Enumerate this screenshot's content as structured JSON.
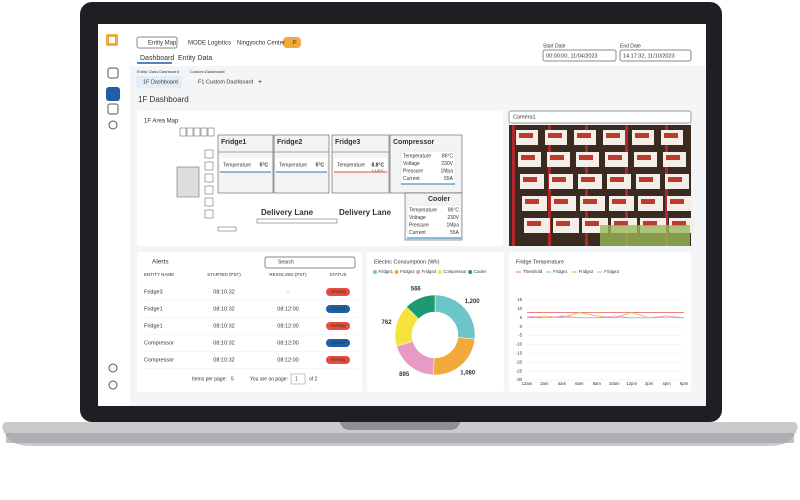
{
  "nav": {
    "entity_map": "Entity Map",
    "breadcrumb": [
      "MODE Logistics",
      "Ningyocho Center"
    ],
    "toggle": "F",
    "tabs": [
      "Dashboard",
      "Entity Data"
    ]
  },
  "dates": {
    "start_label": "Start Date",
    "start": "00:00:00, 11/04/2023",
    "end_label": "End Date",
    "end": "14:17:32, 11/10/2023"
  },
  "dashboards": {
    "class_label": "Entity Class Dashboard",
    "class_item": "1F Dashboard",
    "custom_label": "Custom Dashboard",
    "custom_item": "F1 Custom Dashboard",
    "add": "+"
  },
  "page_title": "1F Dashboard",
  "area_map": {
    "title": "1F Area Map",
    "rooms": [
      {
        "name": "Fridge1",
        "label": "Temperature",
        "value": "5°C"
      },
      {
        "name": "Fridge2",
        "label": "Temperature",
        "value": "5°C"
      },
      {
        "name": "Fridge3",
        "label": "Temperature",
        "value": "8.8°C",
        "delta": "+1.8°C"
      }
    ],
    "equipment": [
      {
        "name": "Compressor",
        "readings": [
          [
            "Temperature",
            "86°C"
          ],
          [
            "Voltage",
            "230V"
          ],
          [
            "Pressure",
            "1Mpa"
          ],
          [
            "Current",
            "55A"
          ]
        ]
      },
      {
        "name": "Cooler",
        "readings": [
          [
            "Temperature",
            "86°C"
          ],
          [
            "Voltage",
            "230V"
          ],
          [
            "Pressure",
            "1Mpa"
          ],
          [
            "Current",
            "55A"
          ]
        ]
      }
    ],
    "lanes": [
      "Delivery Lane",
      "Delivery Lane"
    ]
  },
  "camera": "Camera1",
  "alerts": {
    "title": "Alerts",
    "search": "Search",
    "columns": [
      "ENTITY NAME",
      "STARTED (PST)",
      "RESOLVED (PST)",
      "STATUS"
    ],
    "rows": [
      [
        "Fridge3",
        "08:10:32",
        "-",
        "Alerting"
      ],
      [
        "Fridge1",
        "08:10:32",
        "08:12:00",
        "Solved"
      ],
      [
        "Fridge1",
        "08:10:32",
        "08:12:00",
        "Alerting"
      ],
      [
        "Compressor",
        "08:10:32",
        "08:12:00",
        "Solved"
      ],
      [
        "Compressor",
        "08:10:32",
        "08:12:00",
        "Alerting"
      ]
    ],
    "items_label": "Items per page:",
    "items": "5",
    "page_label": "You are on page:",
    "page": "1",
    "of": "of 2"
  },
  "chart_data": [
    {
      "type": "donut",
      "title": "Electric Consumption (Wh)",
      "categories": [
        "Fridge1",
        "Fridge2",
        "Fridge3",
        "Compressor",
        "Cooler"
      ],
      "values": [
        1200,
        1080,
        895,
        762,
        566
      ],
      "value_labels": [
        "1,200",
        "1,080",
        "895",
        "762",
        "566"
      ],
      "colors": [
        "#6cc5c8",
        "#f2a93b",
        "#e79ac4",
        "#f5e33c",
        "#1e9a73"
      ]
    },
    {
      "type": "line",
      "title": "Fridge Temperature",
      "categories": [
        "12am",
        "2am",
        "4am",
        "6am",
        "8am",
        "10am",
        "12pm",
        "2pm",
        "4pm",
        "6pm"
      ],
      "series": [
        {
          "name": "Threshold",
          "color": "#e57373",
          "values": [
            8,
            8,
            8,
            8,
            8,
            8,
            8,
            8,
            8,
            8
          ]
        },
        {
          "name": "Fridge1",
          "color": "#6cc5c8",
          "values": [
            5,
            5,
            5.5,
            5,
            5,
            5,
            5,
            5,
            5,
            5
          ]
        },
        {
          "name": "Fridge2",
          "color": "#f2a93b",
          "values": [
            5,
            6,
            5,
            8,
            6,
            5,
            8,
            5,
            6,
            5
          ]
        },
        {
          "name": "Fridge3",
          "color": "#e79ac4",
          "values": [
            6,
            5,
            6,
            5,
            5,
            6,
            5,
            5,
            6,
            5
          ]
        }
      ],
      "ylim": [
        -30,
        15
      ],
      "yticks": [
        15,
        10,
        5,
        0,
        -5,
        -10,
        -15,
        -20,
        -25,
        -30
      ],
      "grid": true
    }
  ]
}
